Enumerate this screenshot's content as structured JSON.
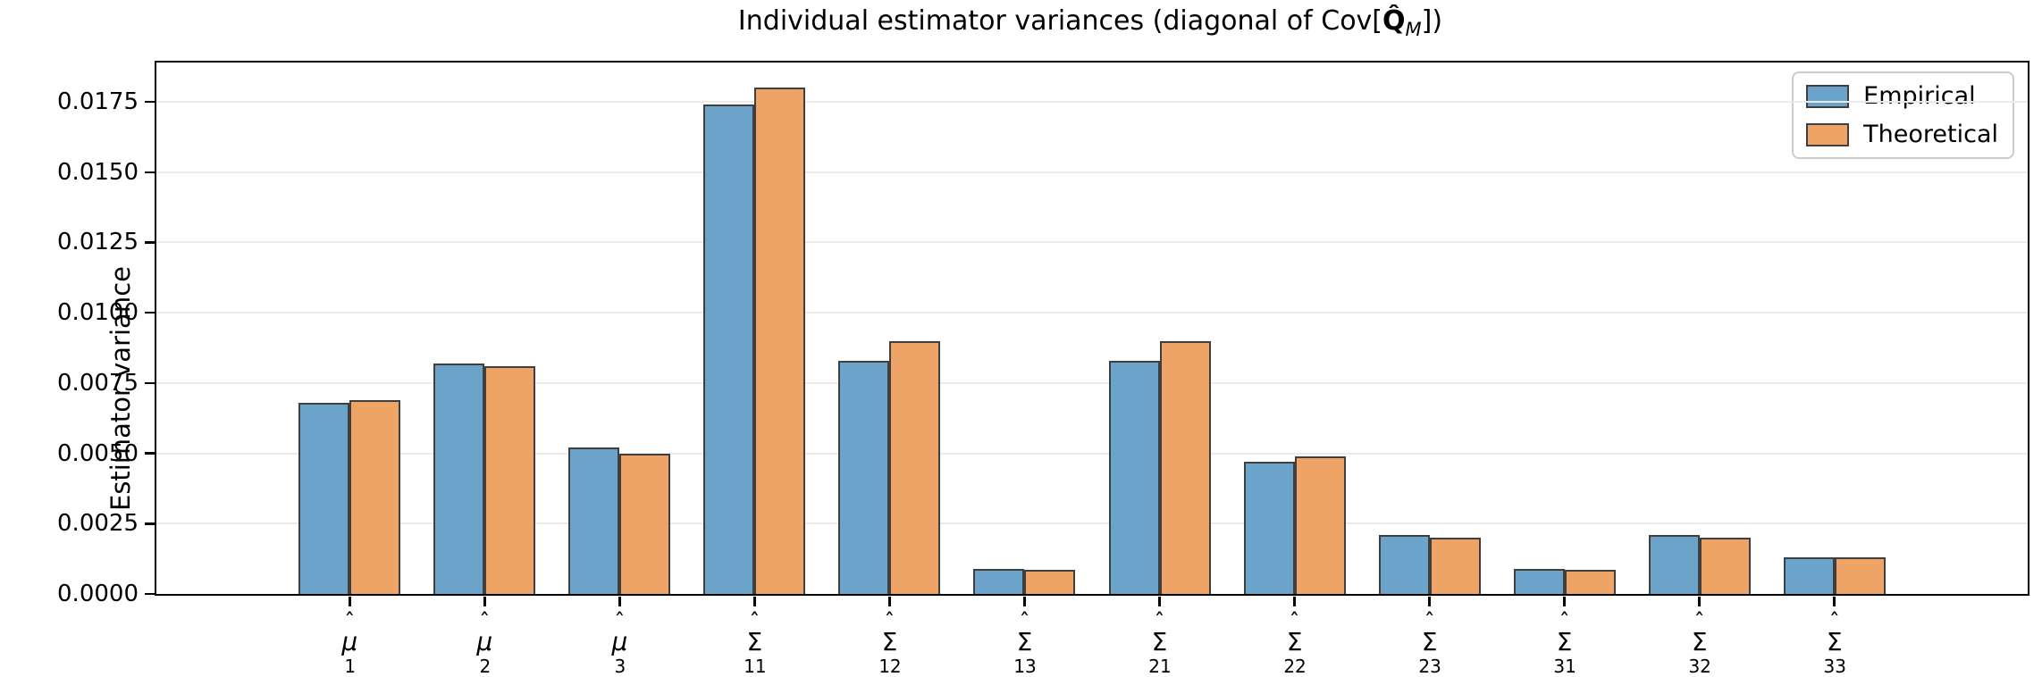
{
  "title": {
    "prefix": "Individual estimator variances (diagonal of Cov[",
    "q_hat": "Q̂",
    "q_sub": "M",
    "suffix": "])"
  },
  "y_axis": {
    "label": "Estimator variance"
  },
  "legend": {
    "items": [
      {
        "label": "Empirical",
        "color": "#6ba3cb"
      },
      {
        "label": "Theoretical",
        "color": "#eda466"
      }
    ]
  },
  "chart_data": {
    "type": "bar",
    "title": "Individual estimator variances (diagonal of Cov[Q̂_M])",
    "xlabel": "",
    "ylabel": "Estimator variance",
    "ylim": [
      0,
      0.0189
    ],
    "yticks": [
      0.0,
      0.0025,
      0.005,
      0.0075,
      0.01,
      0.0125,
      0.015,
      0.0175
    ],
    "grid": true,
    "legend_position": "upper right",
    "bar_edge_color": "#3f3f3f",
    "categories": [
      {
        "hat": "ˆ",
        "base": "μ",
        "sub": "1"
      },
      {
        "hat": "ˆ",
        "base": "μ",
        "sub": "2"
      },
      {
        "hat": "ˆ",
        "base": "μ",
        "sub": "3"
      },
      {
        "hat": "ˆ",
        "base": "Σ",
        "sub": "11"
      },
      {
        "hat": "ˆ",
        "base": "Σ",
        "sub": "12"
      },
      {
        "hat": "ˆ",
        "base": "Σ",
        "sub": "13"
      },
      {
        "hat": "ˆ",
        "base": "Σ",
        "sub": "21"
      },
      {
        "hat": "ˆ",
        "base": "Σ",
        "sub": "22"
      },
      {
        "hat": "ˆ",
        "base": "Σ",
        "sub": "23"
      },
      {
        "hat": "ˆ",
        "base": "Σ",
        "sub": "31"
      },
      {
        "hat": "ˆ",
        "base": "Σ",
        "sub": "32"
      },
      {
        "hat": "ˆ",
        "base": "Σ",
        "sub": "33"
      }
    ],
    "series": [
      {
        "name": "Empirical",
        "color": "#6ba3cb",
        "values": [
          0.0068,
          0.0082,
          0.0052,
          0.0174,
          0.0083,
          0.0009,
          0.0083,
          0.0047,
          0.0021,
          0.0009,
          0.0021,
          0.0013
        ]
      },
      {
        "name": "Theoretical",
        "color": "#eda466",
        "values": [
          0.0069,
          0.0081,
          0.005,
          0.018,
          0.009,
          0.00085,
          0.009,
          0.0049,
          0.002,
          0.00085,
          0.002,
          0.0013
        ]
      }
    ]
  }
}
